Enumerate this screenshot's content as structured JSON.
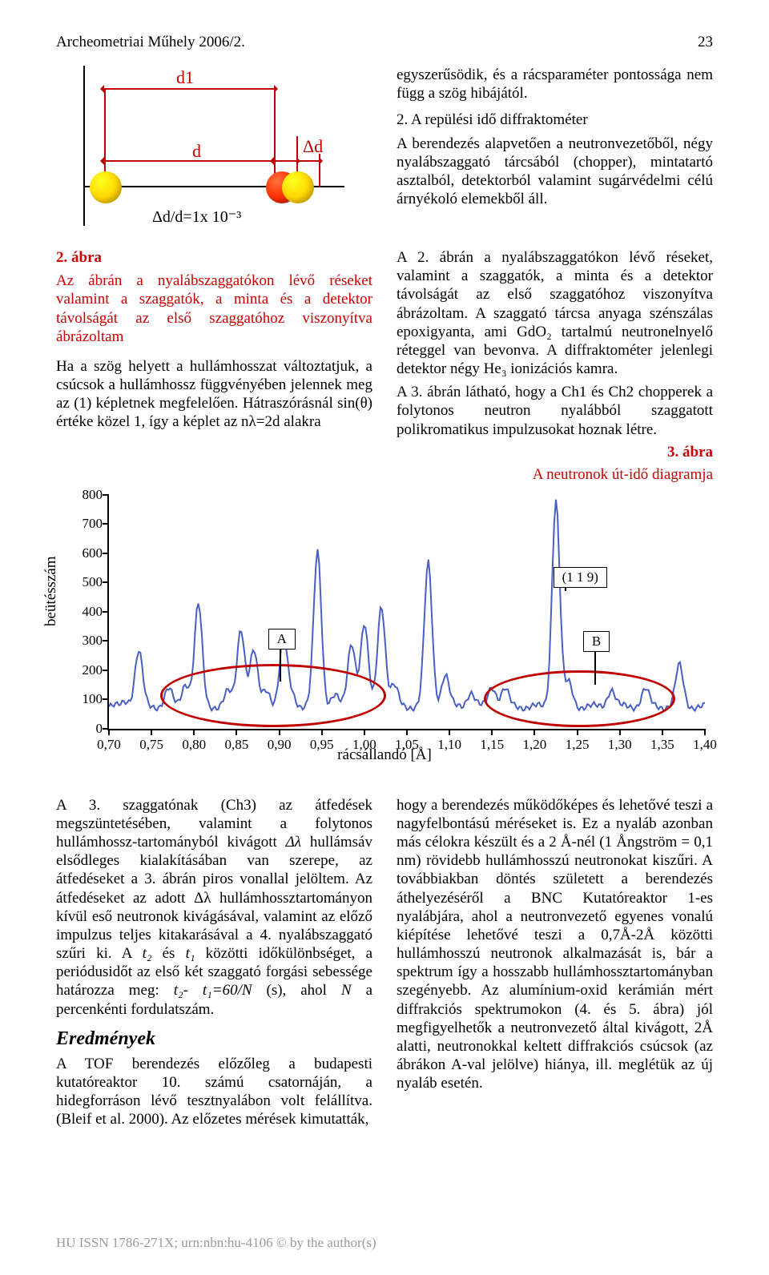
{
  "header": {
    "journal": "Archeometriai Műhely 2006/2.",
    "page_number": "23"
  },
  "fig1": {
    "label_d1": "d1",
    "label_d": "d",
    "label_dd": "Δd",
    "formula": "Δd/d=1x 10⁻³",
    "atom_color_main": "#ffd600",
    "atom_color_shift": "#ff3000",
    "arrow_color": "#c00000"
  },
  "col_r_top": {
    "p1": "egyszerűsödik, és a rácsparaméter pontossága nem függ a szög hibájától.",
    "h": "2. A repülési idő diffraktométer",
    "p2": "A berendezés alapvetően a neutronvezetőből, négy nyalábszaggató tárcsából (chopper), mintatartó asztalból, detektorból valamint sugárvédelmi célú árnyékoló elemekből áll."
  },
  "mid_left": {
    "caption_label": "2. ábra",
    "caption_body": "Az ábrán a nyalábszaggatókon lévő réseket valamint a szaggatók, a minta és a detektor távolságát az első szaggatóhoz viszonyítva ábrázoltam",
    "p": "Ha a szög helyett a hullámhosszat változtatjuk, a csúcsok a hullámhossz függvényében jelennek meg az (1) képletnek megfelelően. Hátraszórásnál sin(θ) értéke közel 1, így a képlet az nλ=2d alakra"
  },
  "mid_right": {
    "p1": "A 2. ábrán a nyalábszaggatókon lévő réseket, valamint a szaggatók, a minta és a detektor távolságát az első szaggatóhoz viszonyítva ábrázoltam. A szaggató tárcsa anyaga szénszálas epoxigyanta, ami GdO₂ tartalmú neutronelnyelő réteggel van bevonva. A diffraktométer jelenlegi detektor négy He₃ ionizációs kamra.",
    "p2": "A 3. ábrán látható, hogy a Ch1 és Ch2 chopperek a folytonos neutron nyalábból szaggatott polikromatikus impulzusokat hoznak létre.",
    "fig_label": "3. ábra",
    "fig_caption": "A neutronok út-idő diagramja"
  },
  "chart": {
    "y_label": "beütésszám",
    "x_label": "rácsállandó [Å]",
    "ylim": [
      0,
      800
    ],
    "ytick_step": 100,
    "xlim": [
      0.7,
      1.4
    ],
    "xtick_step": 0.05,
    "line_color": "#4a5fc4",
    "annotation_A": "A",
    "annotation_B": "B",
    "annotation_119": "(1 1 9)",
    "region_A": [
      0.76,
      1.02
    ],
    "region_B": [
      1.14,
      1.36
    ],
    "tick_labels_x": [
      "0,70",
      "0,75",
      "0,80",
      "0,85",
      "0,90",
      "0,95",
      "1,00",
      "1,05",
      "1,10",
      "1,15",
      "1,20",
      "1,25",
      "1,30",
      "1,35",
      "1,40"
    ],
    "tick_labels_y": [
      "0",
      "100",
      "200",
      "300",
      "400",
      "500",
      "600",
      "700",
      "800"
    ],
    "peaks_x": [
      0.72,
      0.735,
      0.77,
      0.79,
      0.805,
      0.84,
      0.855,
      0.87,
      0.885,
      0.905,
      0.915,
      0.945,
      0.965,
      0.985,
      1.0,
      1.02,
      1.035,
      1.075,
      1.095,
      1.125,
      1.15,
      1.165,
      1.225,
      1.24,
      1.29,
      1.33,
      1.37
    ],
    "peaks_y": [
      90,
      260,
      130,
      150,
      420,
      120,
      340,
      260,
      130,
      300,
      110,
      600,
      110,
      290,
      350,
      420,
      140,
      560,
      180,
      120,
      140,
      130,
      780,
      150,
      130,
      130,
      210
    ],
    "baseline": 70
  },
  "bottom_left": {
    "p1a": "A 3. szaggatónak (Ch3) az átfedések megszüntetésében, valamint a folytonos hullámhossz-tartományból kivágott ",
    "p1i": "Δλ",
    "p1b": " hullámsáv elsődleges kialakításában van szerepe, az átfedéseket a 3. ábrán piros vonallal jelöltem. Az átfedéseket az adott Δλ hullámhossztartományon kívül eső neutronok kivágásával, valamint az előző impulzus teljes kitakarásával a 4. nyalábszaggató szűri ki. A ",
    "p1c": "t₂",
    "p1d": " és ",
    "p1e": "t₁",
    "p1f": " közötti időkülönbséget, a periódusidőt az első két szaggató forgási sebessége határozza meg: ",
    "p1g": "t₂- t₁=60/N",
    "p1h": " (s), ahol ",
    "p1j": "N",
    "p1k": " a percenkénti fordulatszám.",
    "sect": "Eredmények",
    "p2": "A TOF berendezés előzőleg a budapesti kutatóreaktor 10. számú csatornáján, a hidegforráson lévő tesztnyalábon volt felállítva. (Bleif et al. 2000). Az előzetes mérések kimutatták,"
  },
  "bottom_right": {
    "p": "hogy a berendezés működőképes és lehetővé teszi a nagyfelbontású méréseket is. Ez a nyaláb azonban más célokra készült és a 2 Å-nél (1 Ångström = 0,1 nm) rövidebb hullámhosszú neutronokat kiszűri. A továbbiakban döntés született a berendezés áthelyezéséről a BNC Kutatóreaktor 1-es nyalábjára, ahol a neutronvezető egyenes vonalú kiépítése lehetővé teszi a 0,7Å-2Å közötti hullámhosszú neutronok alkalmazását is, bár a spektrum így a hosszabb hullámhossztartományban szegényebb. Az alumínium-oxid kerámián mért diffrakciós spektrumokon (4. és 5. ábra) jól megfigyelhetők a neutronvezető által kivágott, 2Å alatti, neutronokkal keltett diffrakciós csúcsok (az ábrákon A-val jelölve) hiánya, ill. meglétük az új nyaláb esetén."
  },
  "footer": "HU ISSN 1786-271X; urn:nbn:hu-4106 © by the author(s)"
}
